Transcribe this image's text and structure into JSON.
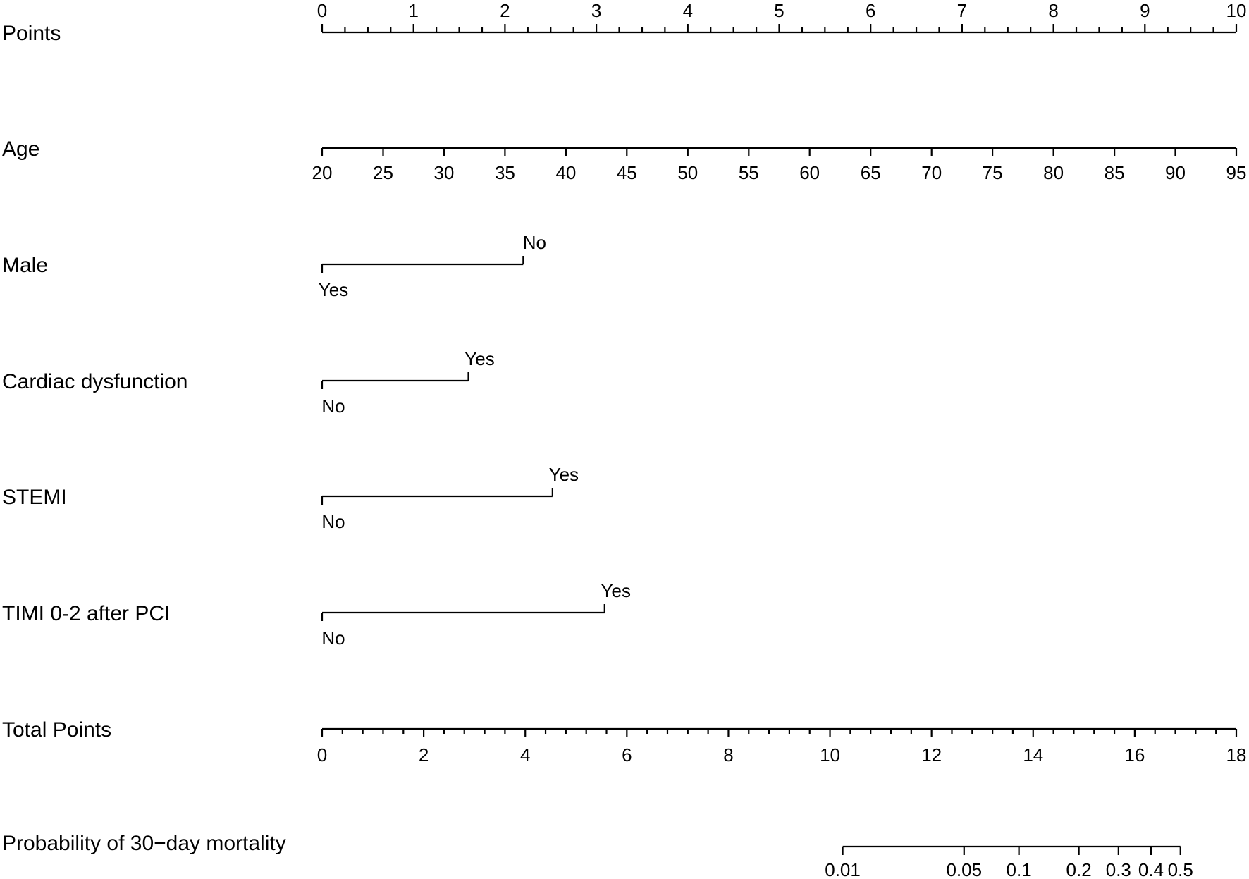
{
  "chart_data": {
    "type": "nomogram",
    "title": "",
    "rows": [
      {
        "label": "Points",
        "kind": "points_scale",
        "min": 0,
        "max": 10,
        "major_ticks": [
          0,
          1,
          2,
          3,
          4,
          5,
          6,
          7,
          8,
          9,
          10
        ],
        "minor_step": 0.25,
        "labels_position": "above"
      },
      {
        "label": "Age",
        "kind": "continuous",
        "ticks": [
          {
            "value": "20",
            "points": 0
          },
          {
            "value": "25",
            "points": 0.667
          },
          {
            "value": "30",
            "points": 1.333
          },
          {
            "value": "35",
            "points": 2.0
          },
          {
            "value": "40",
            "points": 2.667
          },
          {
            "value": "45",
            "points": 3.333
          },
          {
            "value": "50",
            "points": 4.0
          },
          {
            "value": "55",
            "points": 4.667
          },
          {
            "value": "60",
            "points": 5.333
          },
          {
            "value": "65",
            "points": 6.0
          },
          {
            "value": "70",
            "points": 6.667
          },
          {
            "value": "75",
            "points": 7.333
          },
          {
            "value": "80",
            "points": 8.0
          },
          {
            "value": "85",
            "points": 8.667
          },
          {
            "value": "90",
            "points": 9.333
          },
          {
            "value": "95",
            "points": 10.0
          }
        ]
      },
      {
        "label": "Male",
        "kind": "binary",
        "levels": [
          {
            "value": "Yes",
            "points": 0,
            "label_position": "below"
          },
          {
            "value": "No",
            "points": 2.2,
            "label_position": "above"
          }
        ]
      },
      {
        "label": "Cardiac dysfunction",
        "kind": "binary",
        "levels": [
          {
            "value": "No",
            "points": 0,
            "label_position": "below"
          },
          {
            "value": "Yes",
            "points": 1.6,
            "label_position": "above"
          }
        ]
      },
      {
        "label": "STEMI",
        "kind": "binary",
        "levels": [
          {
            "value": "No",
            "points": 0,
            "label_position": "below"
          },
          {
            "value": "Yes",
            "points": 2.52,
            "label_position": "above"
          }
        ]
      },
      {
        "label": "TIMI 0-2 after PCI",
        "kind": "binary",
        "levels": [
          {
            "value": "No",
            "points": 0,
            "label_position": "below"
          },
          {
            "value": "Yes",
            "points": 3.09,
            "label_position": "above"
          }
        ]
      },
      {
        "label": "Total Points",
        "kind": "total_scale",
        "min": 0,
        "max": 18,
        "major_ticks": [
          0,
          2,
          4,
          6,
          8,
          10,
          12,
          14,
          16,
          18
        ],
        "minor_step": 0.4
      },
      {
        "label": "Probability of 30−day mortality",
        "kind": "probability",
        "ticks": [
          {
            "value": "0.01",
            "total_points": 10.25
          },
          {
            "value": "0.05",
            "total_points": 12.64
          },
          {
            "value": "0.1",
            "total_points": 13.72
          },
          {
            "value": "0.2",
            "total_points": 14.9
          },
          {
            "value": "0.3",
            "total_points": 15.68
          },
          {
            "value": "0.4",
            "total_points": 16.32
          },
          {
            "value": "0.5",
            "total_points": 16.9
          }
        ]
      }
    ],
    "xlabel": "",
    "ylabel": "",
    "grid": false,
    "legend": null
  },
  "labels": {
    "points": "Points",
    "age": "Age",
    "male": "Male",
    "cardiac": "Cardiac dysfunction",
    "stemi": "STEMI",
    "timi": "TIMI 0-2 after PCI",
    "total": "Total Points",
    "probability": "Probability of 30−day mortality"
  }
}
